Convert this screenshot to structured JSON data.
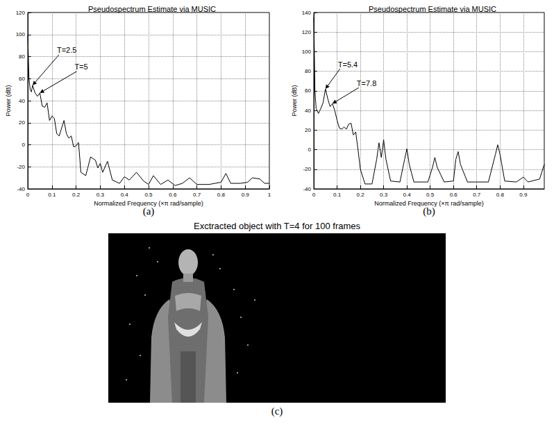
{
  "chart_data": [
    {
      "type": "line",
      "panel": "(a)",
      "title": "Pseudospectrum Estimate via MUSIC",
      "x_label": "Normalized Frequency (×π rad/sample)",
      "y_label": "Power (dB)",
      "color": "#000000",
      "grid": true,
      "x": [
        0,
        0.005,
        0.01,
        0.015,
        0.02,
        0.03,
        0.04,
        0.05,
        0.06,
        0.07,
        0.08,
        0.09,
        0.1,
        0.11,
        0.12,
        0.13,
        0.15,
        0.16,
        0.17,
        0.18,
        0.19,
        0.2,
        0.21,
        0.22,
        0.24,
        0.26,
        0.28,
        0.29,
        0.3,
        0.31,
        0.33,
        0.35,
        0.38,
        0.4,
        0.42,
        0.45,
        0.48,
        0.5,
        0.52,
        0.55,
        0.58,
        0.61,
        0.64,
        0.67,
        0.7,
        0.75,
        0.8,
        0.82,
        0.84,
        0.88,
        0.91,
        0.93,
        0.96,
        0.98,
        1
      ],
      "values": [
        100,
        60,
        50,
        48,
        54,
        47,
        44,
        47,
        35,
        34,
        38,
        22,
        26,
        24,
        10,
        8,
        22,
        10,
        6,
        8,
        -2,
        -1,
        2,
        -25,
        -28,
        -11,
        -14,
        -21,
        -17,
        -25,
        -15,
        -32,
        -35,
        -29,
        -32,
        -25,
        -33,
        -36,
        -28,
        -36,
        -32,
        -37,
        -35,
        -30,
        -36,
        -36,
        -34,
        -26,
        -35,
        -35,
        -34,
        -30,
        -31,
        -35,
        -35
      ],
      "xlim": [
        0,
        1
      ],
      "xticks": [
        0,
        0.1,
        0.2,
        0.3,
        0.4,
        0.5,
        0.6,
        0.7,
        0.8,
        0.9,
        1
      ],
      "ylim": [
        -40,
        120
      ],
      "yticks": [
        -40,
        -20,
        0,
        20,
        40,
        60,
        80,
        100,
        120
      ],
      "annotations": [
        {
          "text": "T=2.5",
          "x": 0.02,
          "y": 54
        },
        {
          "text": "T=5",
          "x": 0.05,
          "y": 47
        }
      ]
    },
    {
      "type": "line",
      "panel": "(b)",
      "title": "Pseudospectrum Estimate via MUSIC",
      "x_label": "Normalized Frequency (×π rad/sample)",
      "y_label": "Power (dB)",
      "color": "#000000",
      "grid": true,
      "x": [
        0,
        0.005,
        0.01,
        0.02,
        0.03,
        0.04,
        0.05,
        0.06,
        0.07,
        0.08,
        0.09,
        0.1,
        0.11,
        0.12,
        0.13,
        0.14,
        0.15,
        0.16,
        0.17,
        0.18,
        0.19,
        0.2,
        0.22,
        0.25,
        0.27,
        0.28,
        0.29,
        0.3,
        0.31,
        0.33,
        0.37,
        0.39,
        0.4,
        0.41,
        0.43,
        0.49,
        0.51,
        0.52,
        0.53,
        0.56,
        0.6,
        0.61,
        0.62,
        0.63,
        0.66,
        0.75,
        0.78,
        0.79,
        0.8,
        0.82,
        0.87,
        0.9,
        0.92,
        0.97,
        0.99
      ],
      "values": [
        135,
        60,
        42,
        37,
        42,
        48,
        62,
        52,
        44,
        47,
        40,
        30,
        22,
        21,
        23,
        21,
        26,
        27,
        15,
        18,
        0,
        -20,
        -35,
        -35,
        -10,
        7,
        -8,
        10,
        -10,
        -32,
        -33,
        -10,
        1,
        -15,
        -33,
        -33,
        -18,
        -8,
        -18,
        -33,
        -32,
        -10,
        -2,
        -15,
        -33,
        -33,
        -5,
        5,
        -5,
        -32,
        -33,
        -28,
        -33,
        -30,
        -15
      ],
      "xlim": [
        0,
        0.99
      ],
      "xticks": [
        0,
        0.1,
        0.2,
        0.3,
        0.4,
        0.5,
        0.6,
        0.7,
        0.8,
        0.9
      ],
      "ylim": [
        -40,
        140
      ],
      "yticks": [
        -40,
        -20,
        0,
        20,
        40,
        60,
        80,
        100,
        120,
        140
      ],
      "annotations": [
        {
          "text": "T=5.4",
          "x": 0.05,
          "y": 62
        },
        {
          "text": "T=7.8",
          "x": 0.08,
          "y": 47
        }
      ]
    }
  ],
  "image_panel": {
    "title": "Exctracted object with T=4 for 100 frames",
    "label": "(c)"
  }
}
